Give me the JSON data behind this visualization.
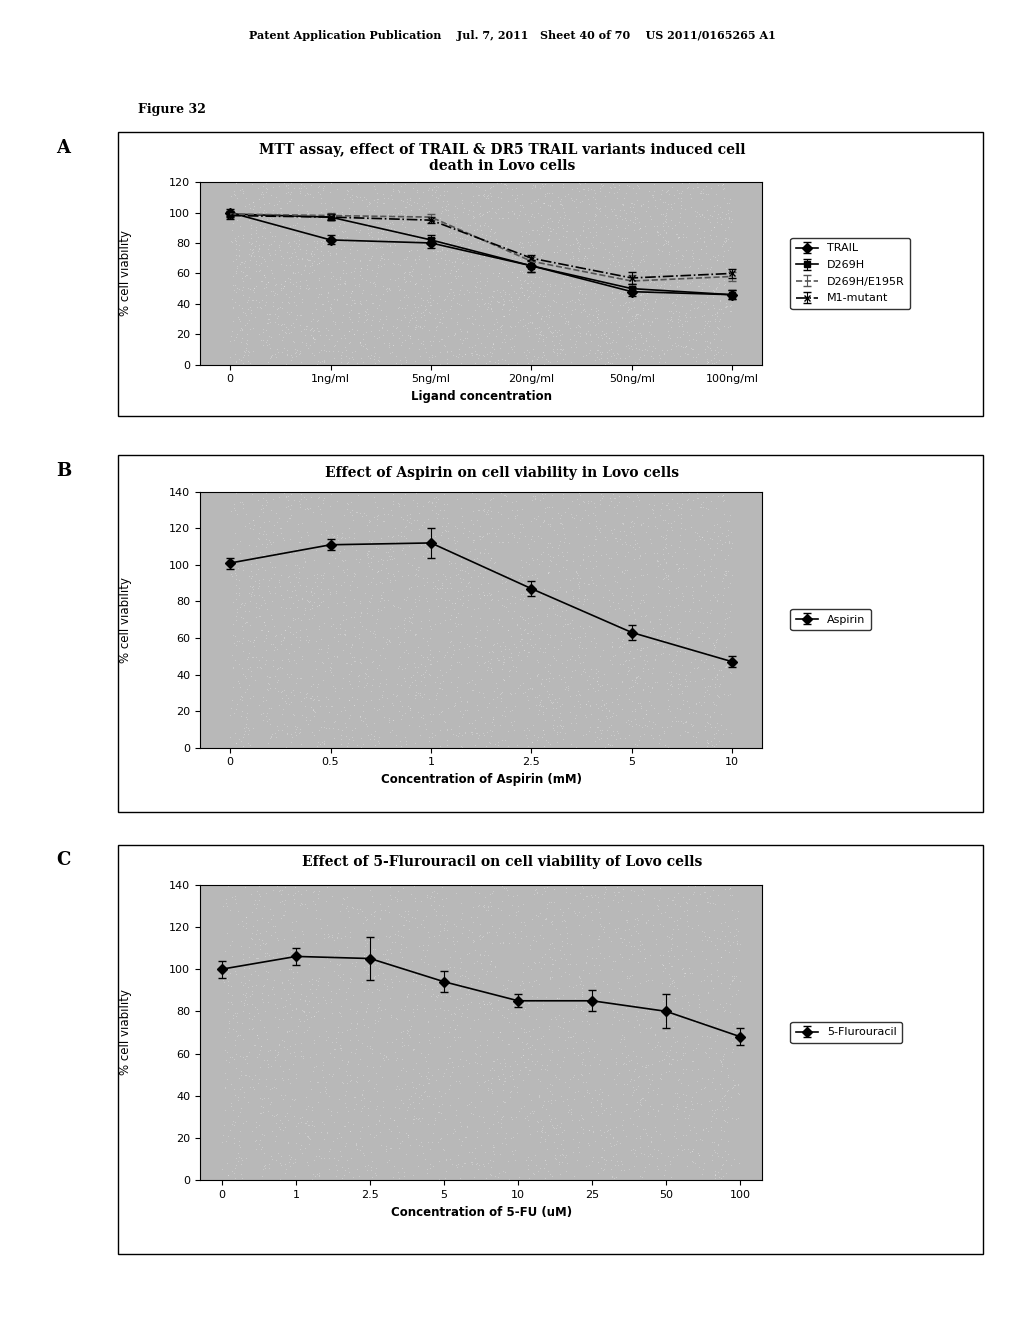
{
  "header_text": "Patent Application Publication    Jul. 7, 2011   Sheet 40 of 70    US 2011/0165265 A1",
  "figure_label": "Figure 32",
  "panel_A": {
    "title": "MTT assay, effect of TRAIL & DR5 TRAIL variants induced cell\ndeath in Lovo cells",
    "xlabel": "Ligand concentration",
    "ylabel": "% cell viability",
    "ylim": [
      0,
      120
    ],
    "yticks": [
      0,
      20,
      40,
      60,
      80,
      100,
      120
    ],
    "xtick_labels": [
      "0",
      "1ng/ml",
      "5ng/ml",
      "20ng/ml",
      "50ng/ml",
      "100ng/ml"
    ],
    "x_positions": [
      0,
      1,
      2,
      3,
      4,
      5
    ],
    "series": [
      {
        "label": "TRAIL",
        "y": [
          100,
          82,
          80,
          65,
          48,
          46
        ],
        "yerr": [
          2,
          3,
          3,
          4,
          3,
          3
        ],
        "color": "#000000",
        "marker": "D",
        "linestyle": "-",
        "markersize": 5
      },
      {
        "label": "D269H",
        "y": [
          99,
          97,
          82,
          65,
          50,
          46
        ],
        "yerr": [
          2,
          2,
          3,
          4,
          3,
          3
        ],
        "color": "#000000",
        "marker": "s",
        "linestyle": "-",
        "markersize": 5
      },
      {
        "label": "D269H/E195R",
        "y": [
          99,
          98,
          97,
          68,
          55,
          58
        ],
        "yerr": [
          2,
          2,
          2,
          3,
          4,
          3
        ],
        "color": "#555555",
        "marker": "None",
        "linestyle": "--",
        "markersize": 0
      },
      {
        "label": "M1-mutant",
        "y": [
          98,
          97,
          95,
          70,
          57,
          60
        ],
        "yerr": [
          2,
          2,
          2,
          2,
          4,
          3
        ],
        "color": "#000000",
        "marker": "x",
        "linestyle": "-.",
        "markersize": 5
      }
    ]
  },
  "panel_B": {
    "title": "Effect of Aspirin on cell viability in Lovo cells",
    "xlabel": "Concentration of Aspirin (mM)",
    "ylabel": "% cell viability",
    "ylim": [
      0,
      140
    ],
    "yticks": [
      0,
      20,
      40,
      60,
      80,
      100,
      120,
      140
    ],
    "xtick_labels": [
      "0",
      "0.5",
      "1",
      "2.5",
      "5",
      "10"
    ],
    "x_positions": [
      0,
      1,
      2,
      3,
      4,
      5
    ],
    "series": [
      {
        "label": "Aspirin",
        "y": [
          101,
          111,
          112,
          87,
          63,
          47
        ],
        "yerr": [
          3,
          3,
          8,
          4,
          4,
          3
        ],
        "color": "#000000",
        "marker": "D",
        "linestyle": "-",
        "markersize": 5
      }
    ]
  },
  "panel_C": {
    "title": "Effect of 5-Flurouracil on cell viability of Lovo cells",
    "xlabel": "Concentration of 5-FU (uM)",
    "ylabel": "% cell viability",
    "ylim": [
      0,
      140
    ],
    "yticks": [
      0,
      20,
      40,
      60,
      80,
      100,
      120,
      140
    ],
    "xtick_labels": [
      "0",
      "1",
      "2.5",
      "5",
      "10",
      "25",
      "50",
      "100"
    ],
    "x_positions": [
      0,
      1,
      2,
      3,
      4,
      5,
      6,
      7
    ],
    "series": [
      {
        "label": "5-Flurouracil",
        "y": [
          100,
          106,
          105,
          94,
          85,
          85,
          80,
          68
        ],
        "yerr": [
          4,
          4,
          10,
          5,
          3,
          5,
          8,
          4
        ],
        "color": "#000000",
        "marker": "D",
        "linestyle": "-",
        "markersize": 5
      }
    ]
  },
  "plot_bg_color": "#b8b8b8",
  "outer_box_color": "#e8e8e8",
  "title_fontsize": 10,
  "label_fontsize": 8.5,
  "tick_fontsize": 8,
  "legend_fontsize": 8
}
